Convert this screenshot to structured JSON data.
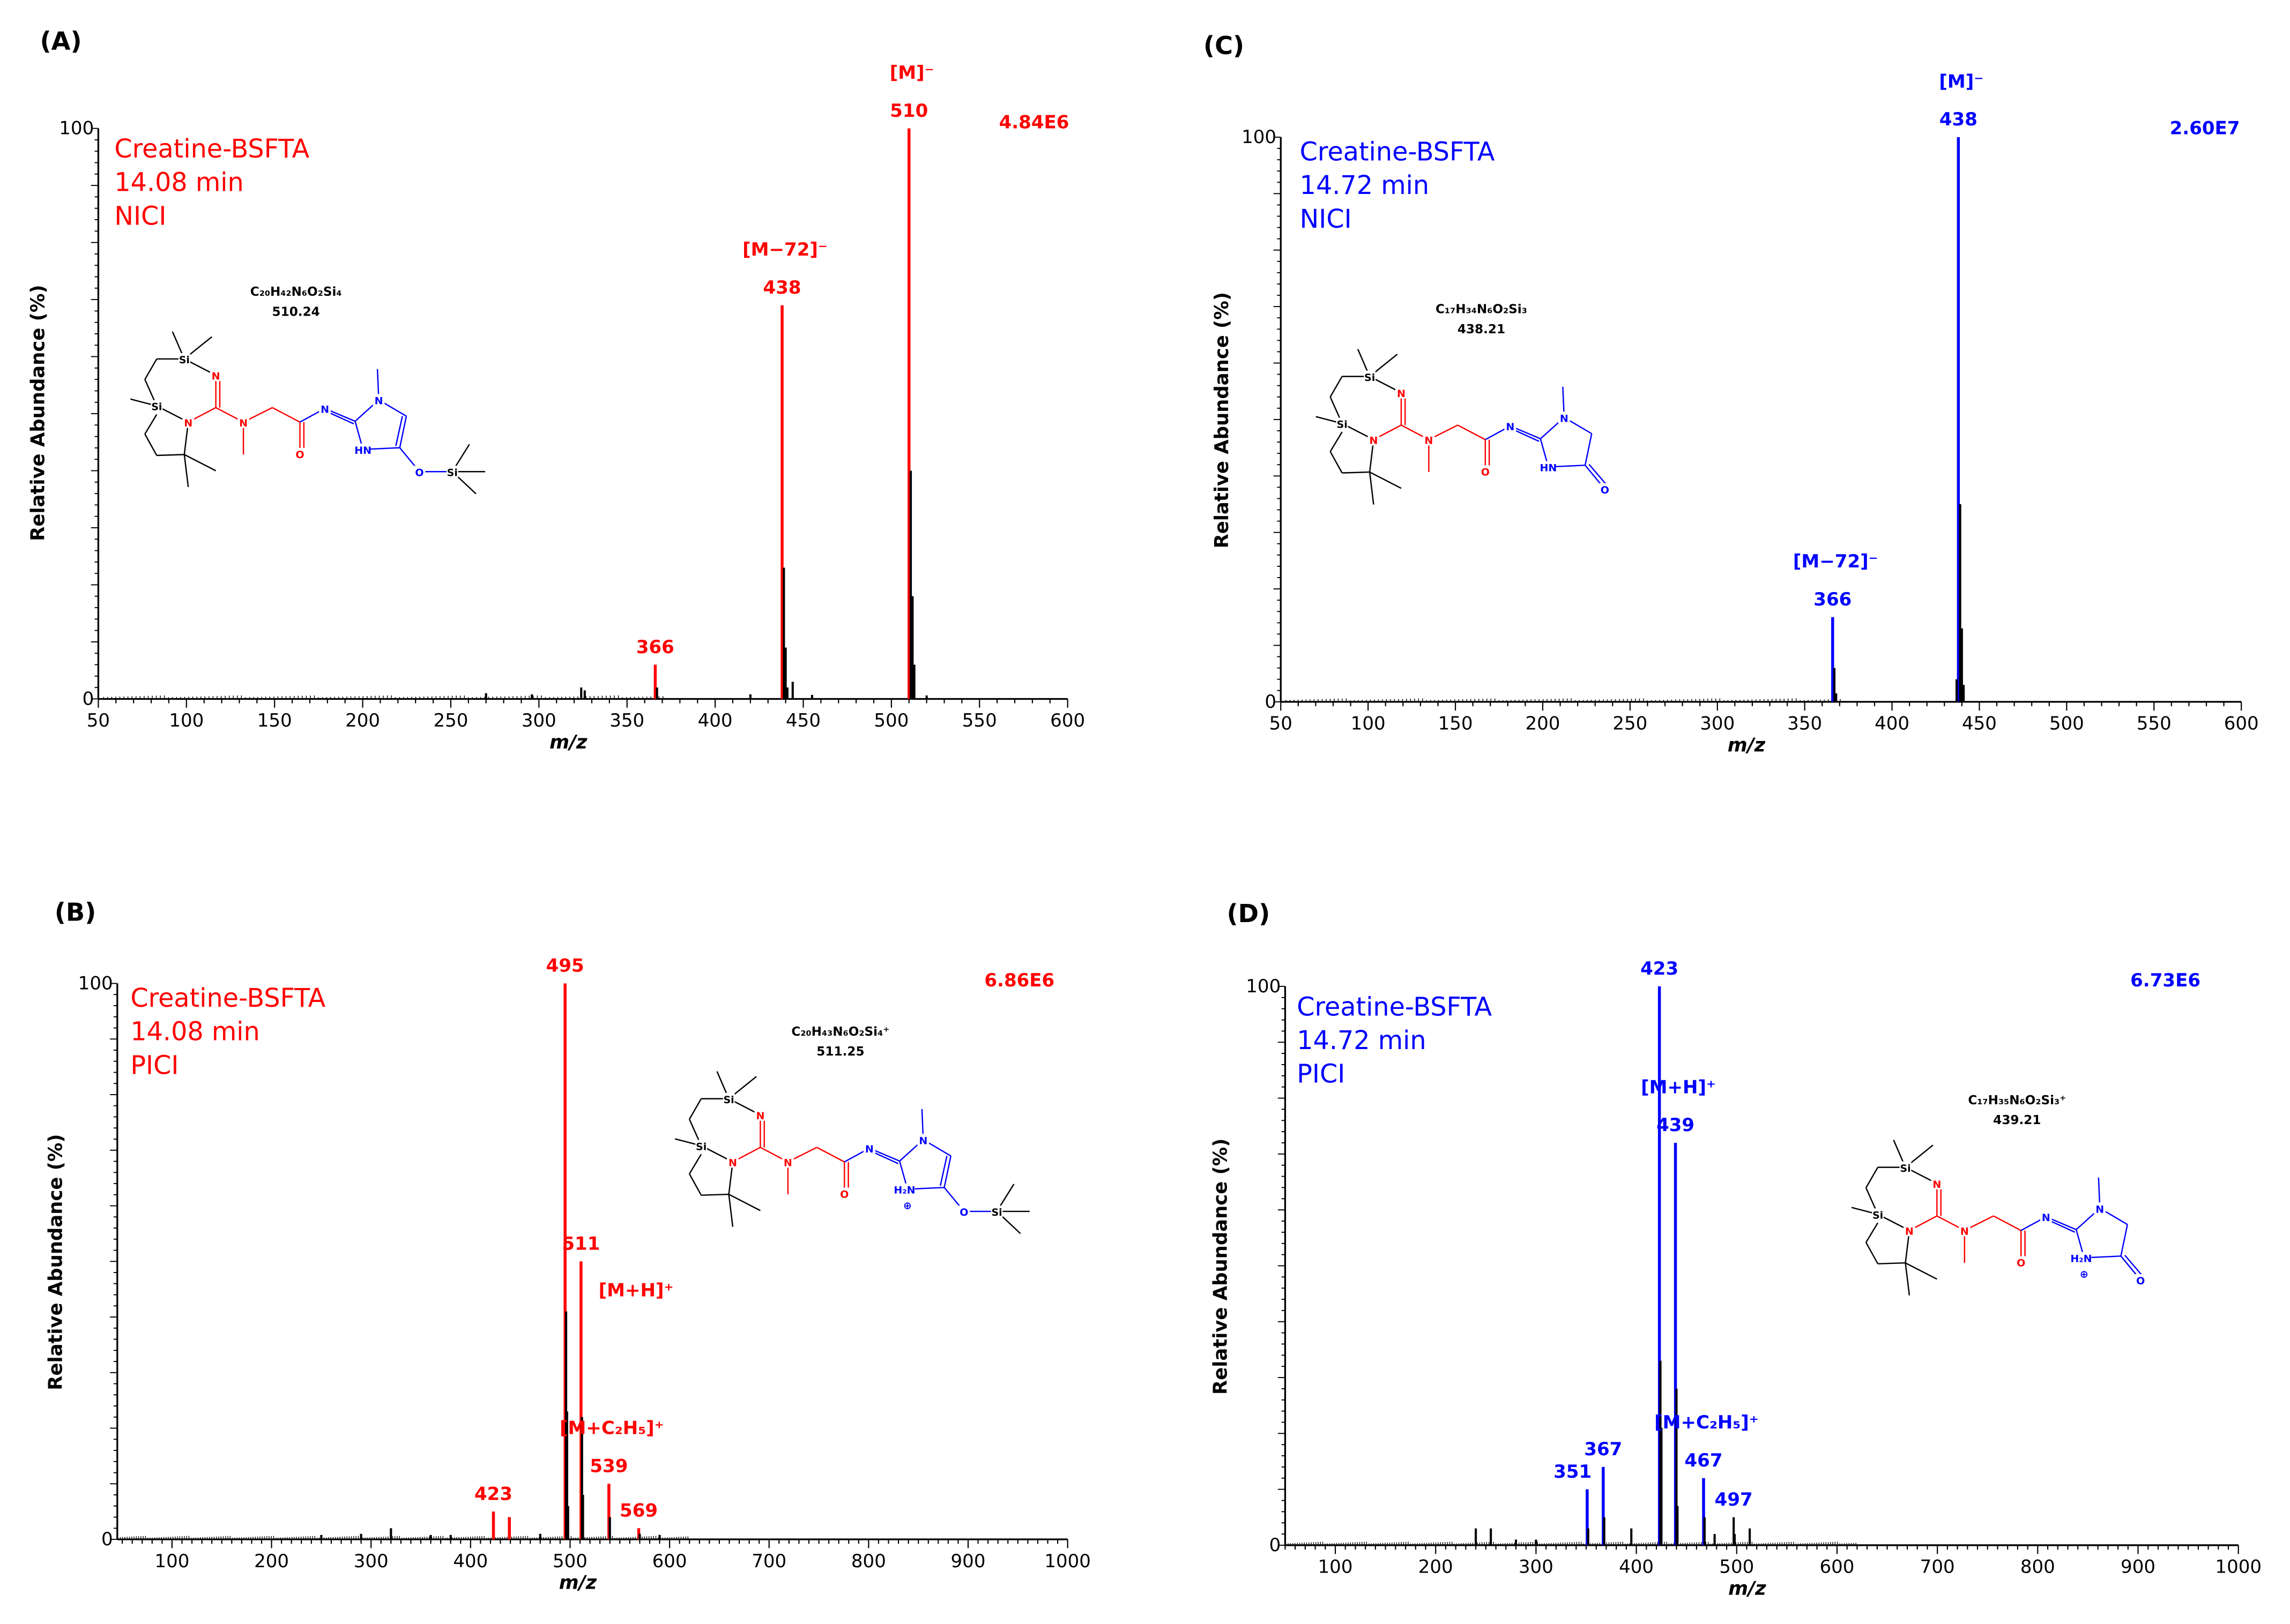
{
  "colors": {
    "red": "#ff0000",
    "blue": "#0000ff",
    "black": "#000000"
  },
  "chart_data": [
    {
      "id": "A",
      "type": "bar",
      "panel_label": "(A)",
      "color": "#ff0000",
      "sample": [
        "Creatine-BSFTA",
        "14.08 min",
        "NICI"
      ],
      "max_intensity": "4.84E6",
      "xlabel": "m/z",
      "ylabel": "Relative Abundance (%)",
      "xlim": [
        50,
        600
      ],
      "ylim": [
        0,
        100
      ],
      "xticks": [
        50,
        100,
        150,
        200,
        250,
        300,
        350,
        400,
        450,
        500,
        550,
        600
      ],
      "yticks": [
        0,
        100
      ],
      "peaks": [
        [
          510,
          100,
          "c"
        ],
        [
          511,
          40,
          "k"
        ],
        [
          512,
          18,
          "k"
        ],
        [
          513,
          6,
          "k"
        ],
        [
          438,
          69,
          "c"
        ],
        [
          439,
          23,
          "k"
        ],
        [
          440,
          9,
          "k"
        ],
        [
          441,
          2,
          "k"
        ],
        [
          444,
          3,
          "k"
        ],
        [
          366,
          6,
          "c"
        ],
        [
          367,
          2,
          "k"
        ],
        [
          324,
          2,
          "k"
        ],
        [
          326,
          1.5,
          "k"
        ],
        [
          270,
          1,
          "k"
        ],
        [
          296,
          0.8,
          "k"
        ],
        [
          420,
          0.8,
          "k"
        ],
        [
          455,
          0.7,
          "k"
        ],
        [
          520,
          0.6,
          "k"
        ]
      ],
      "labels": [
        {
          "mz": 510,
          "lines": [
            "[M]⁻",
            "510"
          ]
        },
        {
          "mz": 438,
          "lines": [
            "[M−72]⁻",
            "438"
          ]
        },
        {
          "mz": 366,
          "lines": [
            "366"
          ]
        }
      ],
      "structure": {
        "variant": "enol",
        "formula": "C₂₀H₄₂N₆O₂Si₄",
        "mass": "510.24",
        "atoms": [
          "Si",
          "N",
          "Si",
          "N",
          "N",
          "O",
          "N",
          "N",
          "HN",
          "O",
          "Si"
        ],
        "charge": ""
      }
    },
    {
      "id": "B",
      "type": "bar",
      "panel_label": "(B)",
      "color": "#ff0000",
      "sample": [
        "Creatine-BSFTA",
        "14.08 min",
        "PICI"
      ],
      "max_intensity": "6.86E6",
      "xlabel": "m/z",
      "ylabel": "Relative Abundance (%)",
      "xlim": [
        45,
        1000
      ],
      "ylim": [
        0,
        100
      ],
      "xticks": [
        100,
        200,
        300,
        400,
        500,
        600,
        700,
        800,
        900,
        1000
      ],
      "yticks": [
        0,
        100
      ],
      "peaks": [
        [
          495,
          100,
          "c"
        ],
        [
          496,
          41,
          "k"
        ],
        [
          497,
          23,
          "k"
        ],
        [
          498,
          6,
          "k"
        ],
        [
          511,
          50,
          "c"
        ],
        [
          512,
          22,
          "k"
        ],
        [
          513,
          8,
          "k"
        ],
        [
          423,
          5,
          "c"
        ],
        [
          439,
          4,
          "c"
        ],
        [
          539,
          10,
          "c"
        ],
        [
          540,
          4,
          "k"
        ],
        [
          569,
          2,
          "c"
        ],
        [
          570,
          1,
          "k"
        ],
        [
          320,
          2,
          "k"
        ],
        [
          250,
          0.8,
          "k"
        ],
        [
          290,
          1,
          "k"
        ],
        [
          360,
          0.8,
          "k"
        ],
        [
          380,
          0.8,
          "k"
        ],
        [
          470,
          1,
          "k"
        ],
        [
          590,
          0.8,
          "k"
        ]
      ],
      "labels": [
        {
          "mz": 495,
          "lines": [
            "495"
          ]
        },
        {
          "mz": 511,
          "lines": [
            "511"
          ],
          "sub": "[M+H]⁺"
        },
        {
          "mz": 539,
          "lines": [
            "[M+C₂H₅]⁺",
            "539"
          ]
        },
        {
          "mz": 423,
          "lines": [
            "423"
          ]
        },
        {
          "mz": 569,
          "lines": [
            "569"
          ]
        }
      ],
      "structure": {
        "variant": "enol",
        "formula": "C₂₀H₄₃N₆O₂Si₄⁺",
        "mass": "511.25",
        "atoms": [
          "Si",
          "N",
          "Si",
          "N",
          "N",
          "O",
          "N",
          "N",
          "H₂N",
          "O",
          "Si"
        ],
        "charge": "⊕"
      }
    },
    {
      "id": "C",
      "type": "bar",
      "panel_label": "(C)",
      "color": "#0000ff",
      "sample": [
        "Creatine-BSFTA",
        "14.72 min",
        "NICI"
      ],
      "max_intensity": "2.60E7",
      "xlabel": "m/z",
      "ylabel": "Relative Abundance (%)",
      "xlim": [
        50,
        600
      ],
      "ylim": [
        0,
        100
      ],
      "xticks": [
        50,
        100,
        150,
        200,
        250,
        300,
        350,
        400,
        450,
        500,
        550,
        600
      ],
      "yticks": [
        0,
        100
      ],
      "peaks": [
        [
          438,
          100,
          "c"
        ],
        [
          439,
          35,
          "k"
        ],
        [
          440,
          13,
          "k"
        ],
        [
          441,
          3,
          "k"
        ],
        [
          437,
          4,
          "k"
        ],
        [
          366,
          15,
          "c"
        ],
        [
          367,
          6,
          "k"
        ],
        [
          368,
          1.5,
          "k"
        ]
      ],
      "labels": [
        {
          "mz": 438,
          "lines": [
            "[M]⁻",
            "438"
          ]
        },
        {
          "mz": 366,
          "lines": [
            "[M−72]⁻",
            "366"
          ]
        }
      ],
      "structure": {
        "variant": "keto",
        "formula": "C₁₇H₃₄N₆O₂Si₃",
        "mass": "438.21",
        "atoms": [
          "Si",
          "N",
          "Si",
          "N",
          "N",
          "O",
          "N",
          "N",
          "HN",
          "O"
        ],
        "charge": ""
      }
    },
    {
      "id": "D",
      "type": "bar",
      "panel_label": "(D)",
      "color": "#0000ff",
      "sample": [
        "Creatine-BSFTA",
        "14.72 min",
        "PICI"
      ],
      "max_intensity": "6.73E6",
      "xlabel": "m/z",
      "ylabel": "Relative Abundance (%)",
      "xlim": [
        50,
        1000
      ],
      "ylim": [
        0,
        100
      ],
      "xticks": [
        100,
        200,
        300,
        400,
        500,
        600,
        700,
        800,
        900,
        1000
      ],
      "yticks": [
        0,
        100
      ],
      "peaks": [
        [
          423,
          100,
          "c"
        ],
        [
          424,
          33,
          "k"
        ],
        [
          425,
          21,
          "k"
        ],
        [
          439,
          72,
          "c"
        ],
        [
          440,
          28,
          "k"
        ],
        [
          441,
          7,
          "k"
        ],
        [
          351,
          10,
          "c"
        ],
        [
          352,
          3,
          "k"
        ],
        [
          367,
          14,
          "c"
        ],
        [
          368,
          5,
          "k"
        ],
        [
          467,
          12,
          "c"
        ],
        [
          468,
          5,
          "k"
        ],
        [
          497,
          5,
          "k"
        ],
        [
          498,
          2,
          "k"
        ],
        [
          513,
          3,
          "k"
        ],
        [
          395,
          3,
          "k"
        ],
        [
          240,
          3,
          "k"
        ],
        [
          255,
          3,
          "k"
        ],
        [
          300,
          1,
          "k"
        ],
        [
          478,
          2,
          "k"
        ],
        [
          280,
          1,
          "k"
        ]
      ],
      "labels": [
        {
          "mz": 423,
          "lines": [
            "423"
          ]
        },
        {
          "mz": 439,
          "lines": [
            "[M+H]⁺",
            "439"
          ]
        },
        {
          "mz": 467,
          "lines": [
            "[M+C₂H₅]⁺",
            "467"
          ]
        },
        {
          "mz": 351,
          "lines": [
            "351"
          ],
          "dx": -10
        },
        {
          "mz": 367,
          "lines": [
            "367"
          ]
        },
        {
          "mz": 497,
          "lines": [
            "497"
          ]
        }
      ],
      "structure": {
        "variant": "keto",
        "formula": "C₁₇H₃₅N₆O₂Si₃⁺",
        "mass": "439.21",
        "atoms": [
          "Si",
          "N",
          "Si",
          "N",
          "N",
          "O",
          "N",
          "N",
          "H₂N",
          "O"
        ],
        "charge": "⊕"
      }
    }
  ]
}
